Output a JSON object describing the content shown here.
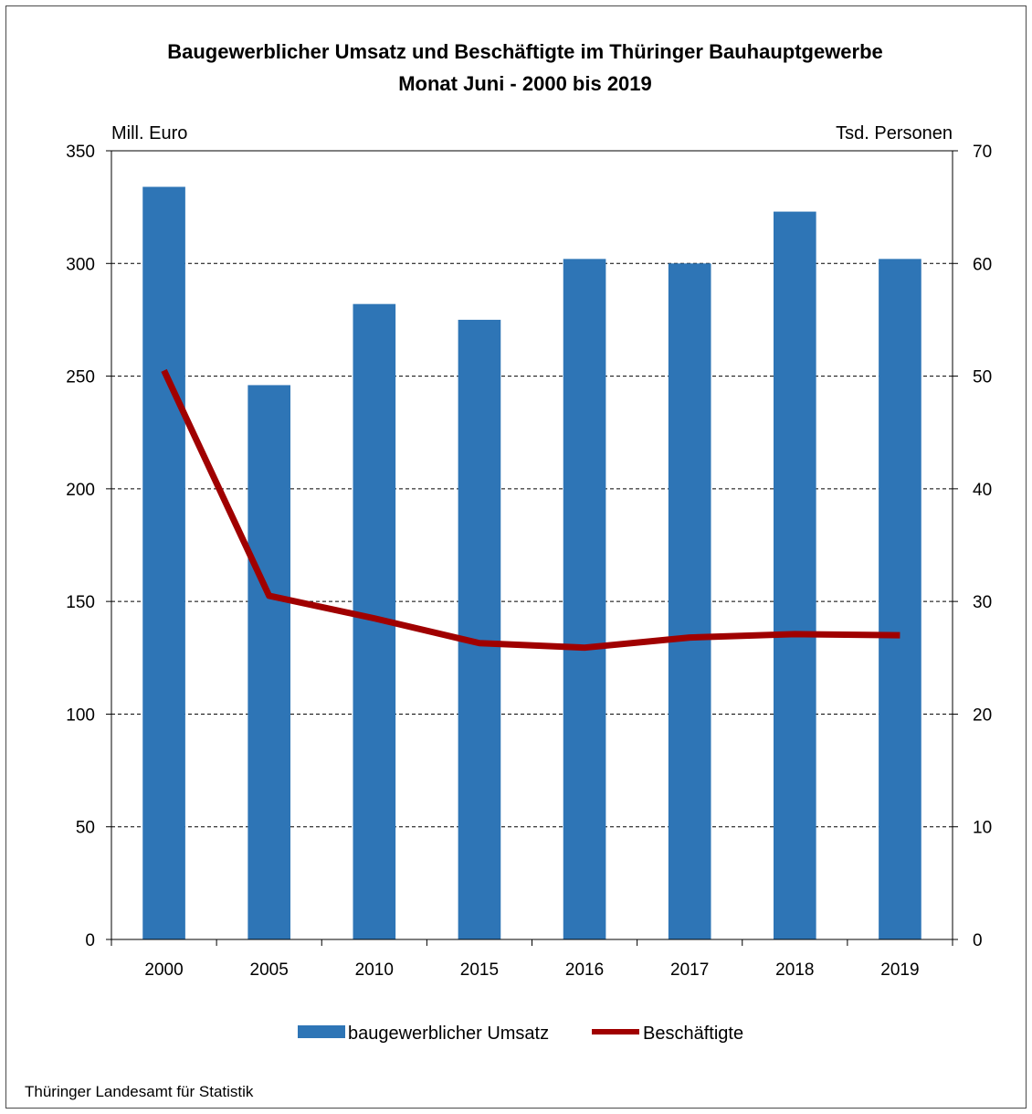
{
  "chart_data": {
    "type": "bar",
    "title": "Baugewerblicher Umsatz und Beschäftigte im Thüringer Bauhauptgewerbe",
    "subtitle": "Monat Juni - 2000 bis 2019",
    "ylabel": "Mill. Euro",
    "y2label": "Tsd. Personen",
    "ylim": [
      0,
      350
    ],
    "y2lim": [
      0,
      70
    ],
    "yticks": [
      0,
      50,
      100,
      150,
      200,
      250,
      300,
      350
    ],
    "y2ticks": [
      0,
      10,
      20,
      30,
      40,
      50,
      60,
      70
    ],
    "grid": "horizontal dashed",
    "legend_position": "bottom",
    "categories": [
      "2000",
      "2005",
      "2010",
      "2015",
      "2016",
      "2017",
      "2018",
      "2019"
    ],
    "series": [
      {
        "name": "baugewerblicher Umsatz",
        "type": "bar",
        "axis": "left",
        "color": "#2e75b6",
        "values": [
          334,
          246,
          282,
          275,
          302,
          300,
          323,
          302
        ]
      },
      {
        "name": "Beschäftigte",
        "type": "line",
        "axis": "right",
        "color": "#a00000",
        "values": [
          50.5,
          30.5,
          28.5,
          26.3,
          25.9,
          26.8,
          27.1,
          27.0
        ]
      }
    ]
  },
  "source": "Thüringer Landesamt für Statistik"
}
